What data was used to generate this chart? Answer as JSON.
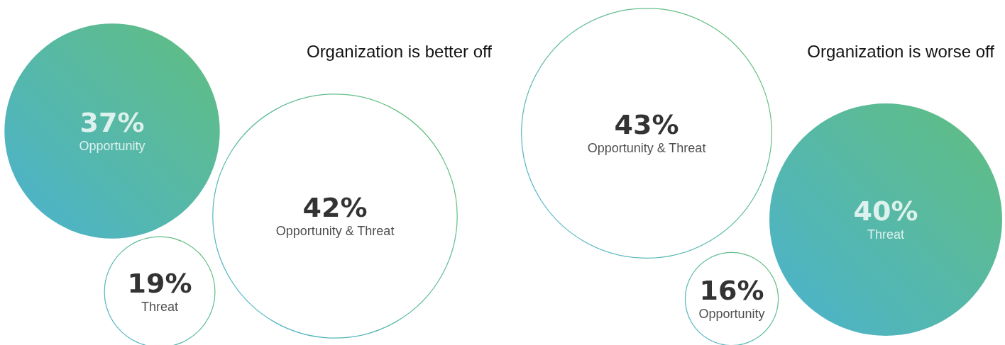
{
  "chart_data": [
    {
      "type": "other",
      "title": "Organization is better off",
      "categories": [
        "Opportunity",
        "Threat",
        "Opportunity & Threat"
      ],
      "values": [
        37,
        19,
        42
      ],
      "value_labels": [
        "37%",
        "19%",
        "42%"
      ],
      "colors": [
        "#3aae5e",
        "#ffffff",
        "#ffffff"
      ]
    },
    {
      "type": "other",
      "title": "Organization is worse off",
      "categories": [
        "Opportunity & Threat",
        "Opportunity",
        "Threat"
      ],
      "values": [
        43,
        16,
        40
      ],
      "value_labels": [
        "43%",
        "16%",
        "40%"
      ],
      "colors": [
        "#ffffff",
        "#ffffff",
        "#3aae5e"
      ]
    }
  ]
}
